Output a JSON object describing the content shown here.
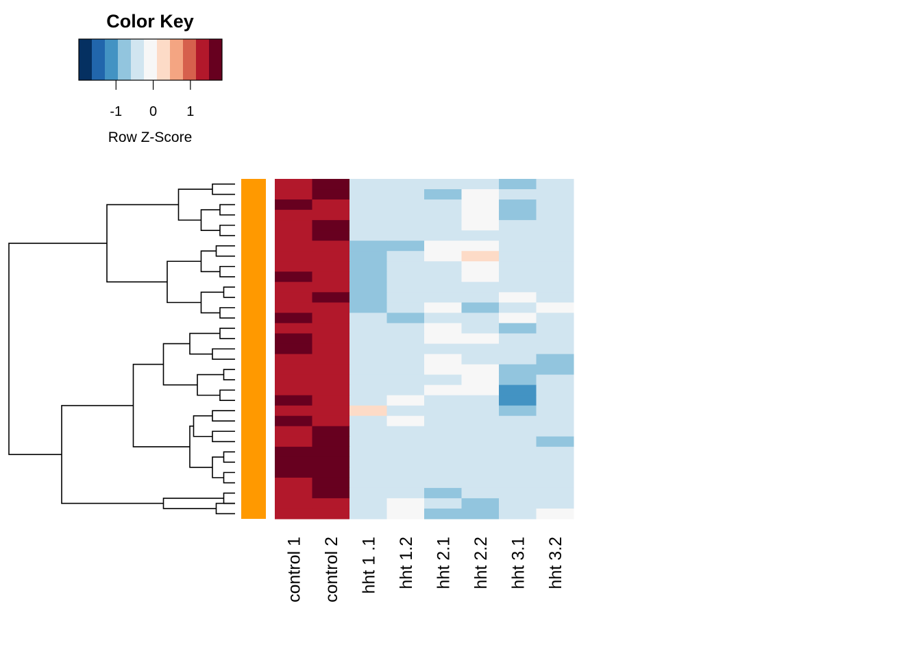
{
  "chart_data": {
    "type": "heatmap",
    "columns": [
      "control 1",
      "control 2",
      "hht 1 .1",
      "hht 1.2",
      "hht 2.1",
      "hht 2.2",
      "hht 3.1",
      "hht 3.2"
    ],
    "row_z_scores": [
      [
        1.2,
        1.8,
        -0.3,
        -0.3,
        -0.3,
        -0.3,
        -0.9,
        -0.6
      ],
      [
        1.4,
        1.8,
        -0.3,
        -0.3,
        -0.9,
        0.0,
        -0.6,
        -0.3
      ],
      [
        1.8,
        1.4,
        -0.6,
        -0.6,
        -0.6,
        0.0,
        -0.9,
        -0.3
      ],
      [
        1.4,
        1.4,
        -0.6,
        -0.3,
        -0.3,
        0.0,
        -0.9,
        -0.3
      ],
      [
        1.4,
        1.8,
        -0.6,
        -0.6,
        -0.6,
        0.0,
        -0.6,
        -0.3
      ],
      [
        1.4,
        1.8,
        -0.6,
        -0.6,
        -0.3,
        -0.3,
        -0.6,
        -0.3
      ],
      [
        1.4,
        1.4,
        -0.9,
        -0.9,
        0.0,
        0.0,
        -0.3,
        -0.6
      ],
      [
        1.4,
        1.4,
        -0.9,
        -0.6,
        0.0,
        0.3,
        -0.6,
        -0.3
      ],
      [
        1.4,
        1.4,
        -0.9,
        -0.6,
        -0.3,
        0.0,
        -0.6,
        -0.3
      ],
      [
        1.8,
        1.4,
        -0.9,
        -0.6,
        -0.3,
        0.0,
        -0.3,
        -0.3
      ],
      [
        1.4,
        1.4,
        -0.9,
        -0.6,
        -0.3,
        -0.3,
        -0.3,
        -0.3
      ],
      [
        1.4,
        1.8,
        -0.9,
        -0.3,
        -0.6,
        -0.6,
        0.0,
        -0.3
      ],
      [
        1.4,
        1.4,
        -0.9,
        -0.3,
        0.0,
        -0.9,
        -0.3,
        0.0
      ],
      [
        1.8,
        1.4,
        -0.6,
        -0.9,
        -0.3,
        -0.6,
        0.0,
        -0.3
      ],
      [
        1.4,
        1.4,
        -0.3,
        -0.6,
        0.0,
        -0.3,
        -0.9,
        -0.3
      ],
      [
        1.8,
        1.4,
        -0.6,
        -0.6,
        0.0,
        0.0,
        -0.6,
        -0.6
      ],
      [
        1.8,
        1.4,
        -0.3,
        -0.6,
        -0.3,
        -0.3,
        -0.6,
        -0.6
      ],
      [
        1.4,
        1.4,
        -0.6,
        -0.3,
        0.0,
        -0.3,
        -0.6,
        -0.9
      ],
      [
        1.4,
        1.4,
        -0.3,
        -0.3,
        0.0,
        0.0,
        -0.9,
        -0.9
      ],
      [
        1.4,
        1.4,
        -0.3,
        -0.3,
        -0.3,
        0.0,
        -0.9,
        -0.6
      ],
      [
        1.4,
        1.4,
        -0.3,
        -0.3,
        0.0,
        0.0,
        -1.2,
        -0.6
      ],
      [
        1.8,
        1.4,
        -0.3,
        0.0,
        -0.3,
        -0.3,
        -1.2,
        -0.6
      ],
      [
        1.4,
        1.4,
        0.3,
        -0.3,
        -0.3,
        -0.6,
        -0.9,
        -0.6
      ],
      [
        1.8,
        1.4,
        -0.3,
        0.0,
        -0.3,
        -0.6,
        -0.6,
        -0.6
      ],
      [
        1.4,
        1.8,
        -0.3,
        -0.3,
        -0.6,
        -0.6,
        -0.6,
        -0.6
      ],
      [
        1.4,
        1.8,
        -0.3,
        -0.3,
        -0.3,
        -0.3,
        -0.6,
        -0.9
      ],
      [
        1.8,
        1.8,
        -0.6,
        -0.6,
        -0.3,
        -0.3,
        -0.6,
        -0.6
      ],
      [
        1.8,
        1.8,
        -0.6,
        -0.6,
        -0.3,
        -0.3,
        -0.6,
        -0.6
      ],
      [
        1.8,
        1.8,
        -0.6,
        -0.6,
        -0.3,
        -0.3,
        -0.6,
        -0.6
      ],
      [
        1.4,
        1.8,
        -0.3,
        -0.3,
        -0.3,
        -0.6,
        -0.3,
        -0.3
      ],
      [
        1.4,
        1.8,
        -0.3,
        -0.3,
        -0.9,
        -0.6,
        -0.3,
        -0.3
      ],
      [
        1.4,
        1.4,
        -0.3,
        0.0,
        -0.6,
        -0.9,
        -0.3,
        -0.3
      ],
      [
        1.4,
        1.4,
        -0.3,
        0.0,
        -0.9,
        -0.9,
        -0.3,
        0.0
      ]
    ],
    "row_side_color": "#ff9900",
    "color_key": {
      "title": "Color Key",
      "label": "Row Z-Score",
      "ticks": [
        -1,
        0,
        1
      ],
      "breaks": [
        -2.0,
        -1.65,
        -1.3,
        -0.95,
        -0.6,
        -0.25,
        0.1,
        0.45,
        0.8,
        1.15,
        1.5,
        1.85
      ],
      "colors": [
        "#053061",
        "#2166ac",
        "#4393c3",
        "#92c5de",
        "#d1e5f0",
        "#f7f7f7",
        "#fddbc7",
        "#f4a582",
        "#d6604d",
        "#b2182b",
        "#67001f"
      ]
    },
    "row_dendrogram": {
      "merges": [
        [
          -1,
          -2
        ],
        [
          -3,
          -4
        ],
        [
          -5,
          -6
        ],
        [
          2,
          3
        ],
        [
          1,
          4
        ],
        [
          -7,
          -8
        ],
        [
          -9,
          -10
        ],
        [
          6,
          7
        ],
        [
          -11,
          -12
        ],
        [
          -13,
          -14
        ],
        [
          9,
          10
        ],
        [
          8,
          11
        ],
        [
          5,
          12
        ],
        [
          -15,
          -16
        ],
        [
          -17,
          -18
        ],
        [
          14,
          15
        ],
        [
          -19,
          -20
        ],
        [
          -21,
          -22
        ],
        [
          17,
          18
        ],
        [
          16,
          19
        ],
        [
          -23,
          -24
        ],
        [
          -25,
          -26
        ],
        [
          21,
          22
        ],
        [
          -27,
          -28
        ],
        [
          -29,
          -30
        ],
        [
          24,
          25
        ],
        [
          23,
          26
        ],
        [
          20,
          27
        ],
        [
          -31,
          -32
        ],
        [
          -32,
          -33
        ],
        [
          29,
          30
        ],
        [
          28,
          31
        ],
        [
          13,
          32
        ]
      ],
      "heights": [
        0.6,
        0.4,
        0.4,
        0.9,
        1.5,
        0.5,
        0.4,
        0.9,
        0.3,
        0.4,
        0.9,
        1.8,
        3.4,
        0.4,
        0.6,
        1.2,
        0.3,
        0.4,
        1.0,
        1.9,
        0.6,
        0.6,
        1.1,
        0.3,
        0.3,
        0.6,
        1.2,
        2.7,
        0.3,
        0.5,
        1.9,
        4.6,
        6.0
      ]
    }
  }
}
